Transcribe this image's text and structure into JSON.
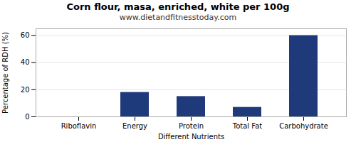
{
  "chart_data": {
    "type": "bar",
    "title": "Corn flour, masa, enriched, white per 100g",
    "subtitle": "www.dietandfitnesstoday.com",
    "categories": [
      "Riboflavin",
      "Energy",
      "Protein",
      "Total Fat",
      "Carbohydrate"
    ],
    "values": [
      0,
      18,
      15,
      7,
      60
    ],
    "color": "#1f3a7a",
    "xlabel": "Different Nutrients",
    "ylabel": "Percentage of RDH (%)",
    "ylim": [
      0,
      65
    ],
    "yticks": [
      0,
      20,
      40,
      60
    ],
    "grid": true
  }
}
